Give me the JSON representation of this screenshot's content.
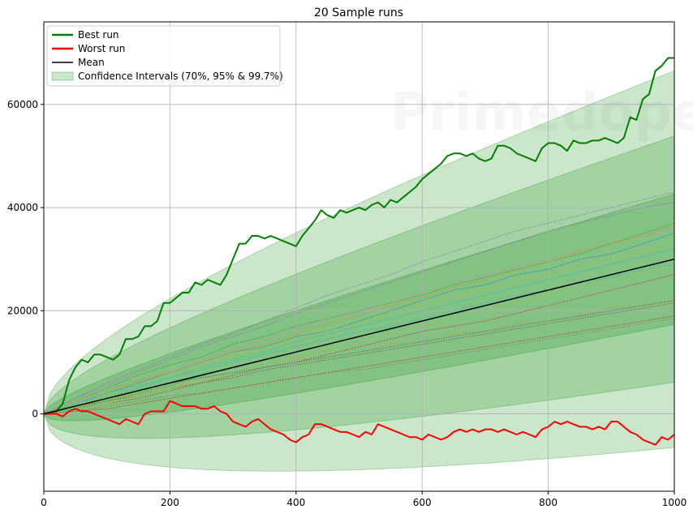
{
  "chart_data": {
    "type": "line",
    "title": "20 Sample runs",
    "xlabel": "",
    "ylabel": "",
    "xlim": [
      0,
      1000
    ],
    "ylim": [
      -15000,
      76000
    ],
    "xticks": [
      0,
      200,
      400,
      600,
      800,
      1000
    ],
    "yticks": [
      0,
      20000,
      40000,
      60000
    ],
    "grid": true,
    "legend_position": "top-left",
    "watermark_text": "Primedope",
    "series": [
      {
        "name": "Best run",
        "color": "#008000",
        "x": [
          0,
          20,
          30,
          40,
          50,
          60,
          70,
          80,
          90,
          100,
          110,
          120,
          130,
          140,
          150,
          160,
          170,
          180,
          190,
          200,
          210,
          220,
          230,
          240,
          250,
          260,
          270,
          280,
          290,
          300,
          310,
          320,
          330,
          340,
          350,
          360,
          370,
          380,
          390,
          400,
          410,
          420,
          430,
          440,
          450,
          460,
          470,
          480,
          490,
          500,
          510,
          520,
          530,
          540,
          550,
          560,
          570,
          580,
          590,
          600,
          610,
          620,
          630,
          640,
          650,
          660,
          670,
          680,
          690,
          700,
          710,
          720,
          730,
          740,
          750,
          760,
          770,
          780,
          790,
          800,
          810,
          820,
          830,
          840,
          850,
          860,
          870,
          880,
          890,
          900,
          910,
          920,
          930,
          940,
          950,
          960,
          970,
          980,
          990,
          1000
        ],
        "values": [
          0,
          500,
          2000,
          6500,
          9000,
          10500,
          10000,
          11500,
          11500,
          11000,
          10500,
          11500,
          14500,
          14500,
          15000,
          17000,
          17000,
          18000,
          21500,
          21500,
          22500,
          23500,
          23500,
          25500,
          25000,
          26000,
          25500,
          25000,
          27000,
          30000,
          33000,
          33000,
          34500,
          34500,
          34000,
          34500,
          34000,
          33500,
          33000,
          32500,
          34500,
          36000,
          37500,
          39500,
          38500,
          38000,
          39500,
          39000,
          39500,
          40000,
          39500,
          40500,
          41000,
          40000,
          41500,
          41000,
          42000,
          43000,
          44000,
          45500,
          46500,
          47500,
          48500,
          50000,
          50500,
          50500,
          50000,
          50500,
          49500,
          49000,
          49500,
          52000,
          52000,
          51500,
          50500,
          50000,
          49500,
          49000,
          51500,
          52500,
          52500,
          52000,
          51000,
          53000,
          52500,
          52500,
          53000,
          53000,
          53500,
          53000,
          52500,
          53500,
          57500,
          57000,
          61000,
          62000,
          66500,
          67500,
          69000,
          69000
        ]
      },
      {
        "name": "Worst run",
        "color": "#ff0000",
        "x": [
          0,
          20,
          30,
          40,
          50,
          60,
          70,
          80,
          90,
          100,
          110,
          120,
          130,
          140,
          150,
          160,
          170,
          180,
          190,
          200,
          210,
          220,
          230,
          240,
          250,
          260,
          270,
          280,
          290,
          300,
          310,
          320,
          330,
          340,
          350,
          360,
          370,
          380,
          390,
          400,
          410,
          420,
          430,
          440,
          450,
          460,
          470,
          480,
          490,
          500,
          510,
          520,
          530,
          540,
          550,
          560,
          570,
          580,
          590,
          600,
          610,
          620,
          630,
          640,
          650,
          660,
          670,
          680,
          690,
          700,
          710,
          720,
          730,
          740,
          750,
          760,
          770,
          780,
          790,
          800,
          810,
          820,
          830,
          840,
          850,
          860,
          870,
          880,
          890,
          900,
          910,
          920,
          930,
          940,
          950,
          960,
          970,
          980,
          990,
          1000
        ],
        "values": [
          0,
          0,
          -500,
          500,
          1000,
          500,
          500,
          0,
          -500,
          -1000,
          -1500,
          -2000,
          -1000,
          -1500,
          -2000,
          0,
          500,
          500,
          500,
          2500,
          2000,
          1500,
          1500,
          1500,
          1000,
          1000,
          1500,
          500,
          0,
          -1500,
          -2000,
          -2500,
          -1500,
          -1000,
          -2000,
          -3000,
          -3500,
          -4000,
          -5000,
          -5500,
          -4500,
          -4000,
          -2000,
          -2000,
          -2500,
          -3000,
          -3500,
          -3500,
          -4000,
          -4500,
          -3500,
          -4000,
          -2000,
          -2500,
          -3000,
          -3500,
          -4000,
          -4500,
          -4500,
          -5000,
          -4000,
          -4500,
          -5000,
          -4500,
          -3500,
          -3000,
          -3500,
          -3000,
          -3500,
          -3000,
          -3000,
          -3500,
          -3000,
          -3500,
          -4000,
          -3500,
          -4000,
          -4500,
          -3000,
          -2500,
          -1500,
          -2000,
          -1500,
          -2000,
          -2500,
          -2500,
          -3000,
          -2500,
          -3000,
          -1500,
          -1500,
          -2500,
          -3500,
          -4000,
          -5000,
          -5500,
          -6000,
          -4500,
          -5000,
          -4000
        ]
      },
      {
        "name": "Mean",
        "color": "#000000",
        "x": [
          0,
          1000
        ],
        "values": [
          0,
          30000
        ]
      }
    ],
    "confidence_intervals": {
      "name": "Confidence Intervals (70%, 95% & 99.7%)",
      "color": "#008000",
      "mean_slope": 30,
      "std_per_sqrt_step": 385,
      "levels": [
        {
          "label": "70%",
          "z": 1.04
        },
        {
          "label": "95%",
          "z": 1.96
        },
        {
          "label": "99.7%",
          "z": 3.0
        }
      ]
    },
    "sample_runs": {
      "count": 17,
      "colors": [
        "#1f77b4",
        "#ff7f0e",
        "#2ca02c",
        "#d62728",
        "#9467bd",
        "#8c564b",
        "#e377c2",
        "#7f7f7f",
        "#bcbd22",
        "#17becf",
        "#1f77b4",
        "#ff7f0e",
        "#2ca02c",
        "#d62728",
        "#9467bd",
        "#bcbd22",
        "#17becf"
      ],
      "x": [
        0,
        50,
        100,
        150,
        200,
        250,
        300,
        350,
        400,
        450,
        500,
        550,
        600,
        650,
        700,
        750,
        800,
        850,
        900,
        950,
        1000
      ],
      "runs": [
        [
          0,
          2000,
          4000,
          6000,
          8000,
          10000,
          12000,
          13000,
          15000,
          16000,
          18000,
          20000,
          22000,
          24000,
          25000,
          27000,
          28000,
          30000,
          31000,
          33000,
          35000
        ],
        [
          0,
          1500,
          3000,
          4000,
          5500,
          7000,
          8000,
          9000,
          10500,
          11000,
          12000,
          13500,
          14000,
          15500,
          16000,
          17500,
          18000,
          19000,
          20500,
          21000,
          22000
        ],
        [
          0,
          2500,
          5000,
          7500,
          9500,
          11000,
          13500,
          15000,
          17000,
          18500,
          20000,
          21500,
          23000,
          25000,
          26500,
          28000,
          29500,
          31000,
          33000,
          35000,
          37000
        ],
        [
          0,
          1000,
          2000,
          3000,
          4500,
          6000,
          7500,
          9000,
          10000,
          11500,
          13000,
          14500,
          16000,
          17000,
          18000,
          19500,
          21000,
          22500,
          24000,
          25500,
          27000
        ],
        [
          0,
          3000,
          6000,
          8500,
          11000,
          13500,
          15500,
          18000,
          20500,
          23000,
          25000,
          27000,
          29500,
          31500,
          33500,
          35500,
          37000,
          38500,
          40000,
          41500,
          43000
        ],
        [
          0,
          1500,
          2500,
          3500,
          5000,
          6000,
          7000,
          8500,
          9500,
          10500,
          11500,
          12500,
          13500,
          14500,
          15500,
          16500,
          17500,
          18500,
          19500,
          20500,
          21500
        ],
        [
          0,
          2000,
          4500,
          6500,
          8500,
          10500,
          12500,
          14500,
          16500,
          18500,
          20000,
          21500,
          23500,
          25500,
          27000,
          28500,
          30000,
          31500,
          33000,
          34500,
          36000
        ],
        [
          0,
          500,
          1500,
          2500,
          3500,
          4000,
          5000,
          6000,
          7000,
          8000,
          8500,
          9500,
          10500,
          11500,
          12500,
          13500,
          14500,
          15500,
          16500,
          17500,
          18500
        ],
        [
          0,
          1000,
          2000,
          3500,
          5000,
          6500,
          8000,
          9500,
          11000,
          12500,
          14000,
          15500,
          17000,
          18500,
          20000,
          21500,
          23000,
          24500,
          26000,
          27500,
          29000
        ],
        [
          0,
          2000,
          3500,
          5000,
          7000,
          9000,
          10500,
          12000,
          14000,
          15500,
          17000,
          18500,
          20000,
          21500,
          23000,
          24500,
          26000,
          27500,
          29000,
          30500,
          32000
        ],
        [
          0,
          1500,
          3000,
          4500,
          6000,
          7000,
          8000,
          9000,
          10000,
          11000,
          12000,
          13000,
          14000,
          15000,
          16000,
          17000,
          18000,
          19000,
          20000,
          21000,
          22000
        ],
        [
          0,
          2500,
          4500,
          6500,
          8000,
          10000,
          12000,
          13500,
          15500,
          17500,
          19000,
          21000,
          22500,
          24500,
          26000,
          28000,
          29500,
          31500,
          33000,
          34500,
          36500
        ],
        [
          0,
          1000,
          2500,
          4000,
          5500,
          7500,
          9000,
          10500,
          12000,
          13500,
          15000,
          16500,
          18000,
          19500,
          21000,
          22500,
          24000,
          25500,
          27000,
          28500,
          30000
        ],
        [
          0,
          500,
          1000,
          2000,
          3000,
          4000,
          5000,
          6000,
          7000,
          8000,
          9000,
          10000,
          11000,
          12000,
          13000,
          14000,
          15000,
          16000,
          17000,
          18000,
          19000
        ],
        [
          0,
          3000,
          5500,
          8000,
          10500,
          13000,
          15000,
          17000,
          19500,
          21500,
          23500,
          25500,
          27500,
          29500,
          31500,
          33500,
          35500,
          37000,
          38500,
          40000,
          41000
        ],
        [
          0,
          1500,
          3500,
          5500,
          7500,
          9000,
          11000,
          12500,
          14500,
          16000,
          17500,
          19500,
          21000,
          22500,
          24000,
          25500,
          27000,
          28500,
          30000,
          31500,
          33000
        ],
        [
          0,
          2000,
          4000,
          5500,
          7000,
          8500,
          10000,
          11500,
          13000,
          14500,
          16000,
          17000,
          18500,
          20000,
          21500,
          23000,
          24000,
          25500,
          26500,
          28000,
          29000
        ]
      ]
    }
  }
}
